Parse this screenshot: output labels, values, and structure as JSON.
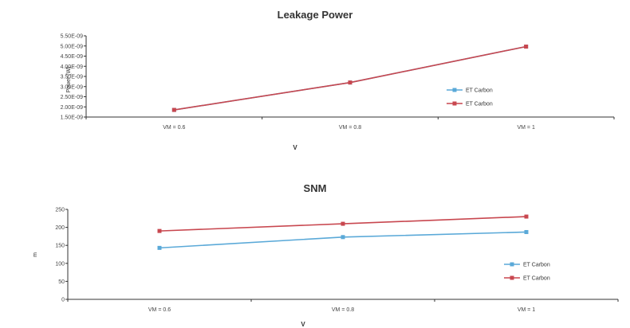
{
  "chart_data": [
    {
      "type": "line",
      "title": "Leakage Power",
      "xlabel": "V",
      "ylabel": "Power (W)",
      "categories": [
        "VM = 0.6",
        "VM = 0.8",
        "VM = 1"
      ],
      "yticks": [
        "1.50E-09",
        "2.00E-09",
        "2.50E-09",
        "3.00E-09",
        "3.50E-09",
        "4.00E-09",
        "4.50E-09",
        "5.00E-09",
        "5.50E-09"
      ],
      "ylim": [
        1.5e-09,
        5.5e-09
      ],
      "grid": false,
      "legend_position": "right",
      "series": [
        {
          "name": "ET Carbon",
          "color": "#5aa9d8",
          "values": [
            1.85e-09,
            3.2e-09,
            4.97e-09
          ]
        },
        {
          "name": "ET Carbon",
          "color": "#c8474f",
          "values": [
            1.85e-09,
            3.2e-09,
            4.97e-09
          ]
        }
      ]
    },
    {
      "type": "line",
      "title": "SNM",
      "xlabel": "V",
      "ylabel": "m",
      "categories": [
        "VM = 0.6",
        "VM = 0.8",
        "VM = 1"
      ],
      "yticks": [
        "0",
        "50",
        "100",
        "150",
        "200",
        "250"
      ],
      "ylim": [
        0,
        250
      ],
      "grid": false,
      "legend_position": "right",
      "series": [
        {
          "name": "ET Carbon",
          "color": "#5aa9d8",
          "values": [
            143,
            173,
            187
          ]
        },
        {
          "name": "ET Carbon",
          "color": "#c8474f",
          "values": [
            190,
            210,
            230
          ]
        }
      ]
    }
  ]
}
